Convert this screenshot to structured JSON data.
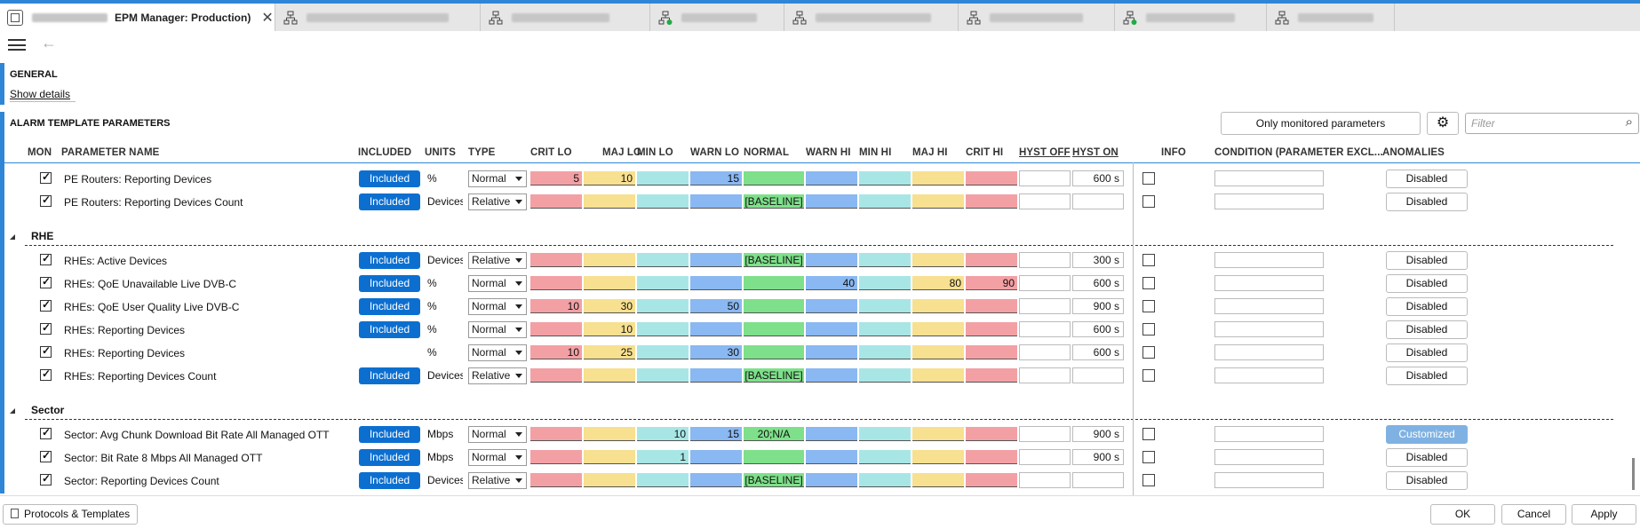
{
  "window": {
    "active_tab_title": "EPM Manager: Production)",
    "tabs": [
      {
        "name": "tab-1",
        "redacted": true
      },
      {
        "name": "tab-2",
        "redacted": true
      },
      {
        "name": "tab-3",
        "redacted": true
      },
      {
        "name": "tab-4",
        "redacted": true,
        "status_dot": "#22aa44"
      },
      {
        "name": "tab-5",
        "redacted": true
      },
      {
        "name": "tab-6",
        "redacted": true
      },
      {
        "name": "tab-7",
        "redacted": true,
        "status_dot": "#22aa44"
      },
      {
        "name": "tab-8",
        "redacted": true
      }
    ]
  },
  "general": {
    "title": "GENERAL",
    "show_details": "Show details"
  },
  "alarm": {
    "title": "ALARM TEMPLATE PARAMETERS",
    "only_monitored": "Only monitored parameters",
    "filter_placeholder": "Filter",
    "columns": [
      "MON",
      "PARAMETER NAME",
      "INCLUDED",
      "UNITS",
      "TYPE",
      "CRIT LO",
      "MAJ LO",
      "MIN LO",
      "WARN LO",
      "NORMAL",
      "WARN HI",
      "MIN HI",
      "MAJ HI",
      "CRIT HI",
      "HYST OFF",
      "HYST ON",
      "INFO",
      "CONDITION (PARAMETER EXCL...",
      "ANOMALIES"
    ]
  },
  "colors": {
    "crit": "#f3a0a5",
    "maj": "#f7e08f",
    "min": "#a8e6e6",
    "warn": "#8ab8f2",
    "normal": "#7ee08a",
    "accent": "#0c6fd0"
  },
  "groups": [
    {
      "name": "RHE"
    },
    {
      "name": "Sector"
    }
  ],
  "rows": [
    {
      "mon": true,
      "name": "PE Routers: Reporting Devices",
      "included": "Included",
      "units": "%",
      "type": "Normal",
      "crit_lo": "5",
      "maj_lo": "10",
      "min_lo": "",
      "warn_lo": "15",
      "normal": "",
      "warn_hi": "",
      "min_hi": "",
      "maj_hi": "",
      "crit_hi": "",
      "hyst_off": "",
      "hyst_on": "600 s",
      "anomalies": "Disabled"
    },
    {
      "mon": true,
      "name": "PE Routers: Reporting Devices Count",
      "included": "Included",
      "units": "Devices",
      "type": "Relative",
      "crit_lo": "",
      "maj_lo": "",
      "min_lo": "",
      "warn_lo": "",
      "normal": "[BASELINE]",
      "warn_hi": "",
      "min_hi": "",
      "maj_hi": "",
      "crit_hi": "",
      "hyst_off": "",
      "hyst_on": "",
      "anomalies": "Disabled"
    },
    {
      "mon": true,
      "name": "RHEs: Active Devices",
      "included": "Included",
      "units": "Devices",
      "type": "Relative",
      "crit_lo": "",
      "maj_lo": "",
      "min_lo": "",
      "warn_lo": "",
      "normal": "[BASELINE]",
      "warn_hi": "",
      "min_hi": "",
      "maj_hi": "",
      "crit_hi": "",
      "hyst_off": "",
      "hyst_on": "300 s",
      "anomalies": "Disabled"
    },
    {
      "mon": true,
      "name": "RHEs: QoE Unavailable Live DVB-C",
      "included": "Included",
      "units": "%",
      "type": "Normal",
      "crit_lo": "",
      "maj_lo": "",
      "min_lo": "",
      "warn_lo": "",
      "normal": "",
      "warn_hi": "40",
      "min_hi": "",
      "maj_hi": "80",
      "crit_hi": "90",
      "hyst_off": "",
      "hyst_on": "600 s",
      "anomalies": "Disabled"
    },
    {
      "mon": true,
      "name": "RHEs: QoE User Quality Live DVB-C",
      "included": "Included",
      "units": "%",
      "type": "Normal",
      "crit_lo": "10",
      "maj_lo": "30",
      "min_lo": "",
      "warn_lo": "50",
      "normal": "",
      "warn_hi": "",
      "min_hi": "",
      "maj_hi": "",
      "crit_hi": "",
      "hyst_off": "",
      "hyst_on": "900 s",
      "anomalies": "Disabled"
    },
    {
      "mon": true,
      "name": "RHEs: Reporting Devices",
      "included": "Included",
      "units": "%",
      "type": "Normal",
      "crit_lo": "",
      "maj_lo": "10",
      "min_lo": "",
      "warn_lo": "",
      "normal": "",
      "warn_hi": "",
      "min_hi": "",
      "maj_hi": "",
      "crit_hi": "",
      "hyst_off": "",
      "hyst_on": "600 s",
      "anomalies": "Disabled"
    },
    {
      "mon": true,
      "name": "RHEs: Reporting Devices",
      "included": "",
      "units": "%",
      "type": "Normal",
      "crit_lo": "10",
      "maj_lo": "25",
      "min_lo": "",
      "warn_lo": "30",
      "normal": "",
      "warn_hi": "",
      "min_hi": "",
      "maj_hi": "",
      "crit_hi": "",
      "hyst_off": "",
      "hyst_on": "600 s",
      "anomalies": "Disabled"
    },
    {
      "mon": true,
      "name": "RHEs: Reporting Devices Count",
      "included": "Included",
      "units": "Devices",
      "type": "Relative",
      "crit_lo": "",
      "maj_lo": "",
      "min_lo": "",
      "warn_lo": "",
      "normal": "[BASELINE]",
      "warn_hi": "",
      "min_hi": "",
      "maj_hi": "",
      "crit_hi": "",
      "hyst_off": "",
      "hyst_on": "",
      "anomalies": "Disabled"
    },
    {
      "mon": true,
      "name": "Sector: Avg Chunk Download Bit Rate All Managed OTT",
      "included": "Included",
      "units": "Mbps",
      "type": "Normal",
      "crit_lo": "",
      "maj_lo": "",
      "min_lo": "10",
      "warn_lo": "15",
      "normal": "20;N/A",
      "warn_hi": "",
      "min_hi": "",
      "maj_hi": "",
      "crit_hi": "",
      "hyst_off": "",
      "hyst_on": "900 s",
      "anomalies": "Customized"
    },
    {
      "mon": true,
      "name": "Sector: Bit Rate 8 Mbps All Managed OTT",
      "included": "Included",
      "units": "Mbps",
      "type": "Normal",
      "crit_lo": "",
      "maj_lo": "",
      "min_lo": "1",
      "warn_lo": "",
      "normal": "",
      "warn_hi": "",
      "min_hi": "",
      "maj_hi": "",
      "crit_hi": "",
      "hyst_off": "",
      "hyst_on": "900 s",
      "anomalies": "Disabled"
    },
    {
      "mon": true,
      "name": "Sector: Reporting Devices Count",
      "included": "Included",
      "units": "Devices",
      "type": "Relative",
      "crit_lo": "",
      "maj_lo": "",
      "min_lo": "",
      "warn_lo": "",
      "normal": "[BASELINE]",
      "warn_hi": "",
      "min_hi": "",
      "maj_hi": "",
      "crit_hi": "",
      "hyst_off": "",
      "hyst_on": "",
      "anomalies": "Disabled"
    }
  ],
  "footer": {
    "protocols": "Protocols & Templates",
    "ok": "OK",
    "cancel": "Cancel",
    "apply": "Apply"
  }
}
